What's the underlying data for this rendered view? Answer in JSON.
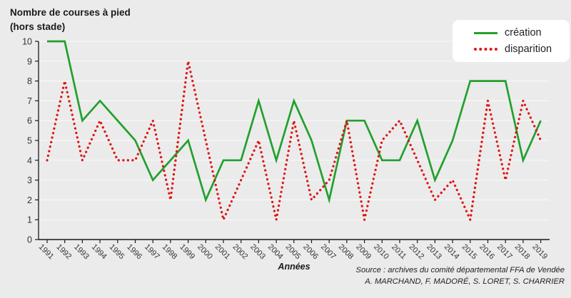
{
  "title": {
    "line1": "Nombre de courses à pied",
    "line2": "(hors stade)"
  },
  "source": {
    "line1": "Source : archives du comité départemental FFA de Vendée",
    "line2": "A. MARCHAND, F. MADORÉ, S. LORET, S. CHARRIER"
  },
  "chart_data": {
    "type": "line",
    "title": "Nombre de courses à pied (hors stade)",
    "xlabel": "Années",
    "ylabel": "",
    "x": [
      1991,
      1992,
      1993,
      1994,
      1995,
      1996,
      1997,
      1998,
      1999,
      2000,
      2001,
      2002,
      2003,
      2004,
      2005,
      2006,
      2007,
      2008,
      2009,
      2010,
      2011,
      2012,
      2013,
      2014,
      2015,
      2016,
      2017,
      2018,
      2019
    ],
    "series": [
      {
        "name": "création",
        "color": "#22A02C",
        "line_style": "solid",
        "values": [
          10,
          10,
          6,
          7,
          6,
          5,
          3,
          4,
          5,
          2,
          4,
          4,
          7,
          4,
          7,
          5,
          2,
          6,
          6,
          4,
          4,
          6,
          3,
          5,
          8,
          8,
          8,
          4,
          6
        ]
      },
      {
        "name": "disparition",
        "color": "#E01414",
        "line_style": "dotted",
        "values": [
          4,
          8,
          4,
          6,
          4,
          4,
          6,
          2,
          9,
          5,
          1,
          3,
          5,
          1,
          6,
          2,
          3,
          6,
          1,
          5,
          6,
          4,
          2,
          3,
          1,
          7,
          3,
          7,
          5
        ]
      }
    ],
    "ylim": [
      0,
      10
    ],
    "yticks": [
      0,
      1,
      2,
      3,
      4,
      5,
      6,
      7,
      8,
      9,
      10
    ],
    "grid": true,
    "legend_position": "top-right",
    "background": "#EBEBEB"
  }
}
